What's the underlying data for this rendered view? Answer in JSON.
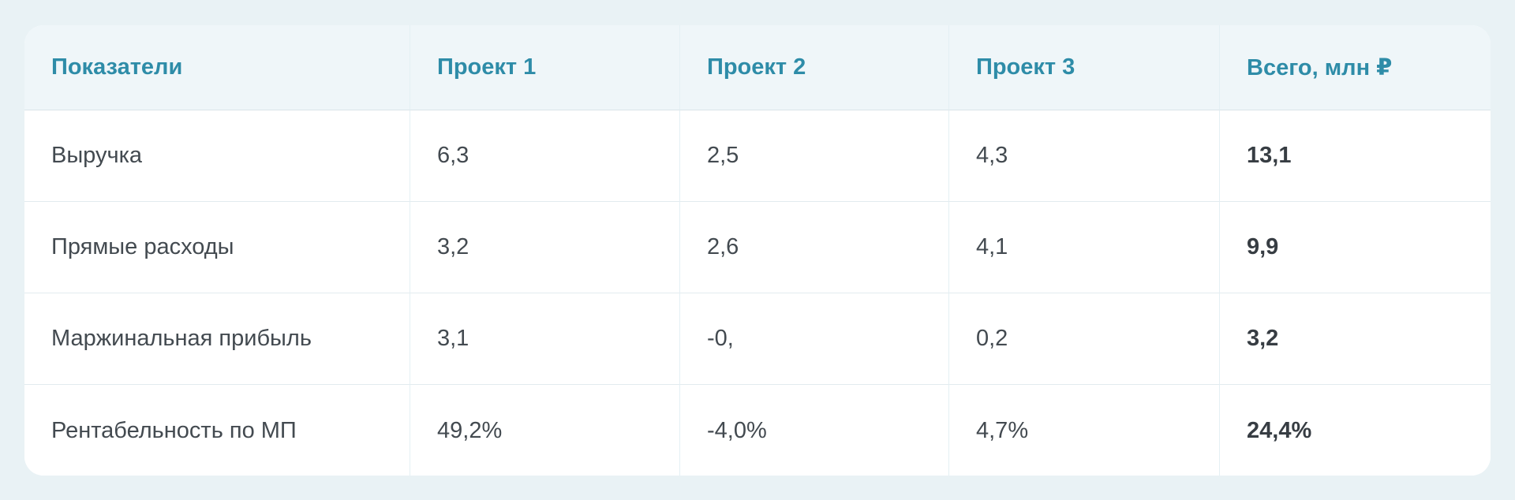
{
  "colors": {
    "accent_teal": "#2e8ca8",
    "page_background": "#e9f2f5",
    "header_background": "#eff6f9",
    "body_text": "#434a50"
  },
  "chart_data": {
    "type": "table",
    "title": "",
    "columns": [
      "Показатели",
      "Проект 1",
      "Проект 2",
      "Проект 3",
      "Всего, млн ₽"
    ],
    "rows": [
      {
        "label": "Выручка",
        "p1": "6,3",
        "p2": "2,5",
        "p3": "4,3",
        "total": "13,1"
      },
      {
        "label": "Прямые расходы",
        "p1": "3,2",
        "p2": "2,6",
        "p3": "4,1",
        "total": "9,9"
      },
      {
        "label": "Маржинальная прибыль",
        "p1": "3,1",
        "p2": "-0,",
        "p3": "0,2",
        "total": "3,2"
      },
      {
        "label": "Рентабельность по МП",
        "p1": "49,2%",
        "p2": "-4,0%",
        "p3": "4,7%",
        "total": "24,4%"
      }
    ],
    "layout_hints": {
      "header_style": "teal bold on light tinted band",
      "totals_column_bold": true,
      "grid": "light row and column dividers",
      "card": "white rounded card on light cyan background"
    }
  }
}
